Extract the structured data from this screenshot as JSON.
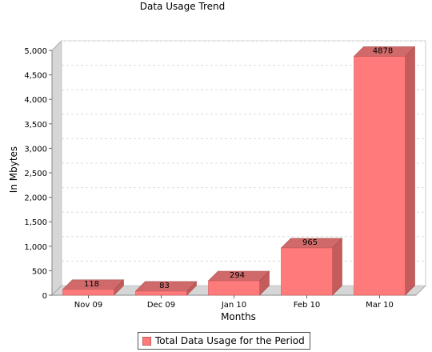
{
  "chart_data": {
    "type": "bar",
    "title": "Data Usage Trend",
    "xlabel": "Months",
    "ylabel": "In Mbytes",
    "categories": [
      "Nov 09",
      "Dec 09",
      "Jan 10",
      "Feb 10",
      "Mar 10"
    ],
    "series": [
      {
        "name": "Total Data Usage for the Period",
        "values": [
          118,
          83,
          294,
          965,
          4878
        ]
      }
    ],
    "data_labels": [
      "118",
      "83",
      "294",
      "965",
      "4878"
    ],
    "ylim": [
      0,
      5000
    ],
    "yticks": [
      0,
      500,
      1000,
      1500,
      2000,
      2500,
      3000,
      3500,
      4000,
      4500,
      5000
    ],
    "ytick_labels": [
      "0",
      "500",
      "1,000",
      "1,500",
      "2,000",
      "2,500",
      "3,000",
      "3,500",
      "4,000",
      "4,500",
      "5,000"
    ],
    "grid": true,
    "legend_position": "bottom",
    "bar_color": "#ff7a7a"
  }
}
